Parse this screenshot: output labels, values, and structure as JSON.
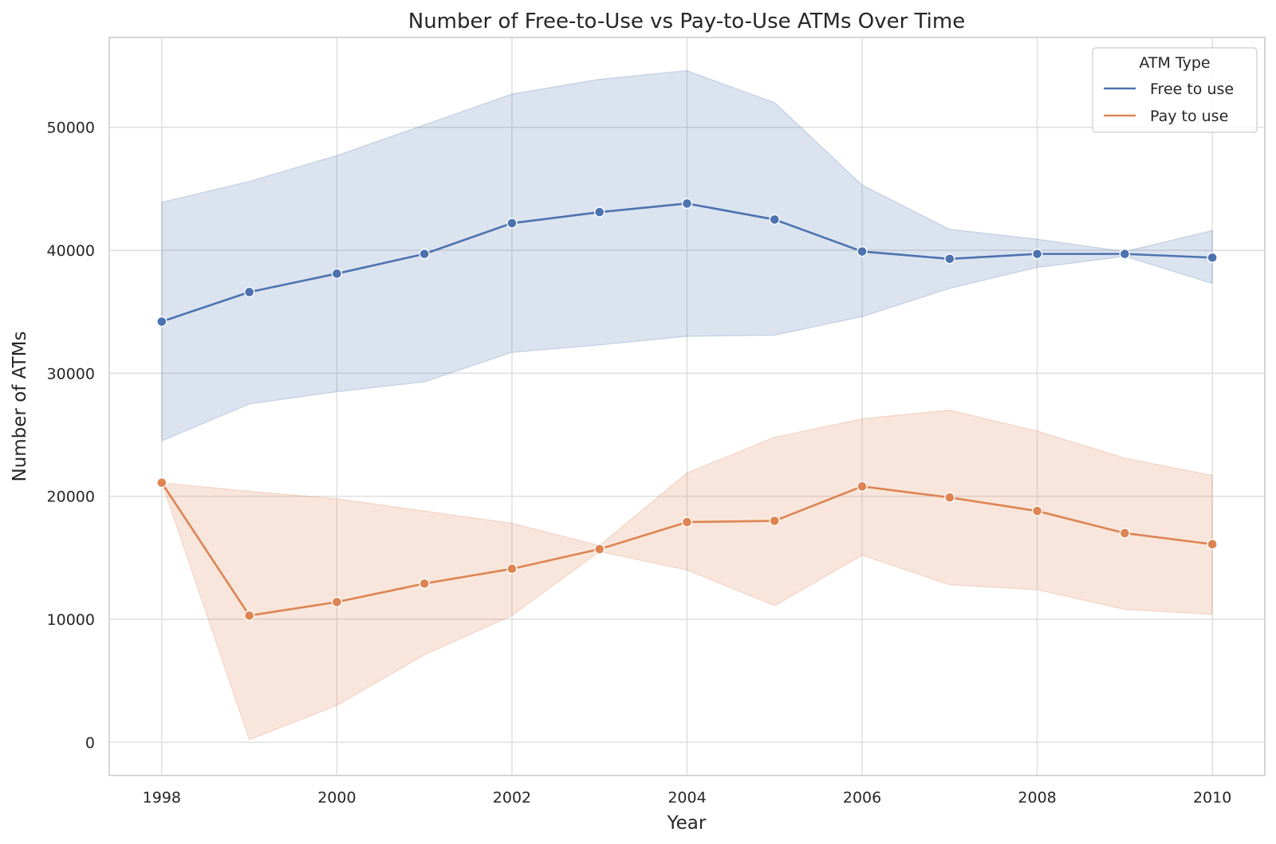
{
  "chart_data": {
    "type": "line",
    "title": "Number of Free-to-Use vs Pay-to-Use ATMs Over Time",
    "xlabel": "Year",
    "ylabel": "Number of ATMs",
    "x": [
      1998,
      1999,
      2000,
      2001,
      2002,
      2003,
      2004,
      2005,
      2006,
      2007,
      2008,
      2009,
      2010
    ],
    "x_ticks": [
      1998,
      2000,
      2002,
      2004,
      2006,
      2008,
      2010
    ],
    "y_ticks": [
      0,
      10000,
      20000,
      30000,
      40000,
      50000
    ],
    "xlim": [
      1997.4,
      2010.6
    ],
    "ylim": [
      -2700,
      57300
    ],
    "grid": true,
    "legend": {
      "title": "ATM Type",
      "placement": "top-right"
    },
    "series": [
      {
        "name": "Free to use",
        "color": "#4c72b0",
        "values": [
          34200,
          36600,
          38100,
          39700,
          42200,
          43100,
          43800,
          42500,
          39900,
          39300,
          39700,
          39700,
          39400
        ],
        "ci_low": [
          24500,
          27500,
          28500,
          29300,
          31700,
          32300,
          33000,
          33100,
          34600,
          36900,
          38600,
          39500,
          37300
        ],
        "ci_high": [
          43900,
          45600,
          47700,
          50200,
          52700,
          53900,
          54600,
          52000,
          45300,
          41700,
          40900,
          39900,
          41600
        ]
      },
      {
        "name": "Pay to use",
        "color": "#dd8452",
        "values": [
          21100,
          10300,
          11400,
          12900,
          14100,
          15700,
          17900,
          18000,
          20800,
          19900,
          18800,
          17000,
          16100
        ],
        "ci_low": [
          21100,
          200,
          3000,
          7100,
          10300,
          15500,
          14000,
          11100,
          15200,
          12800,
          12400,
          10800,
          10400
        ],
        "ci_high": [
          21100,
          20400,
          19800,
          18800,
          17800,
          16000,
          21900,
          24800,
          26300,
          27000,
          25300,
          23100,
          21700
        ]
      }
    ]
  }
}
